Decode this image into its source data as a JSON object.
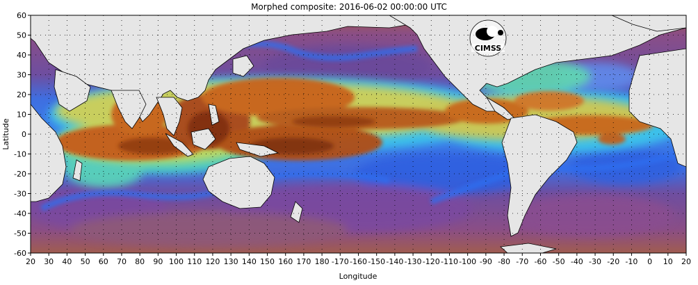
{
  "title": "Morphed composite: 2016-06-02 00:00:00 UTC",
  "map": {
    "xlabel": "Longitude",
    "ylabel": "Latitude",
    "x_ticks": [
      "20",
      "30",
      "40",
      "50",
      "60",
      "70",
      "80",
      "90",
      "100",
      "110",
      "120",
      "130",
      "140",
      "150",
      "160",
      "170",
      "180",
      "-170",
      "-160",
      "-150",
      "-140",
      "-130",
      "-120",
      "-110",
      "-100",
      "-90",
      "-80",
      "-70",
      "-60",
      "-50",
      "-40",
      "-30",
      "-20",
      "-10",
      "0",
      "10",
      "20"
    ],
    "y_ticks": [
      "60",
      "50",
      "40",
      "30",
      "20",
      "10",
      "0",
      "-10",
      "-20",
      "-30",
      "-40",
      "-50",
      "-60"
    ],
    "lon_range": [
      20,
      380
    ],
    "lat_range": [
      -60,
      60
    ],
    "colors": {
      "land": "#e6e6e6",
      "dry": "#7a4f8c",
      "dry_edge": "#a45a9c",
      "low": "#2f66e8",
      "mid_low": "#2fb8f0",
      "mid": "#6fe0a8",
      "mid_high": "#e8d640",
      "high": "#d8781c",
      "very_high": "#8c3a10",
      "coast": "#000000"
    }
  },
  "logo": {
    "text": "CIMSS",
    "label": "CIMSS logo"
  }
}
